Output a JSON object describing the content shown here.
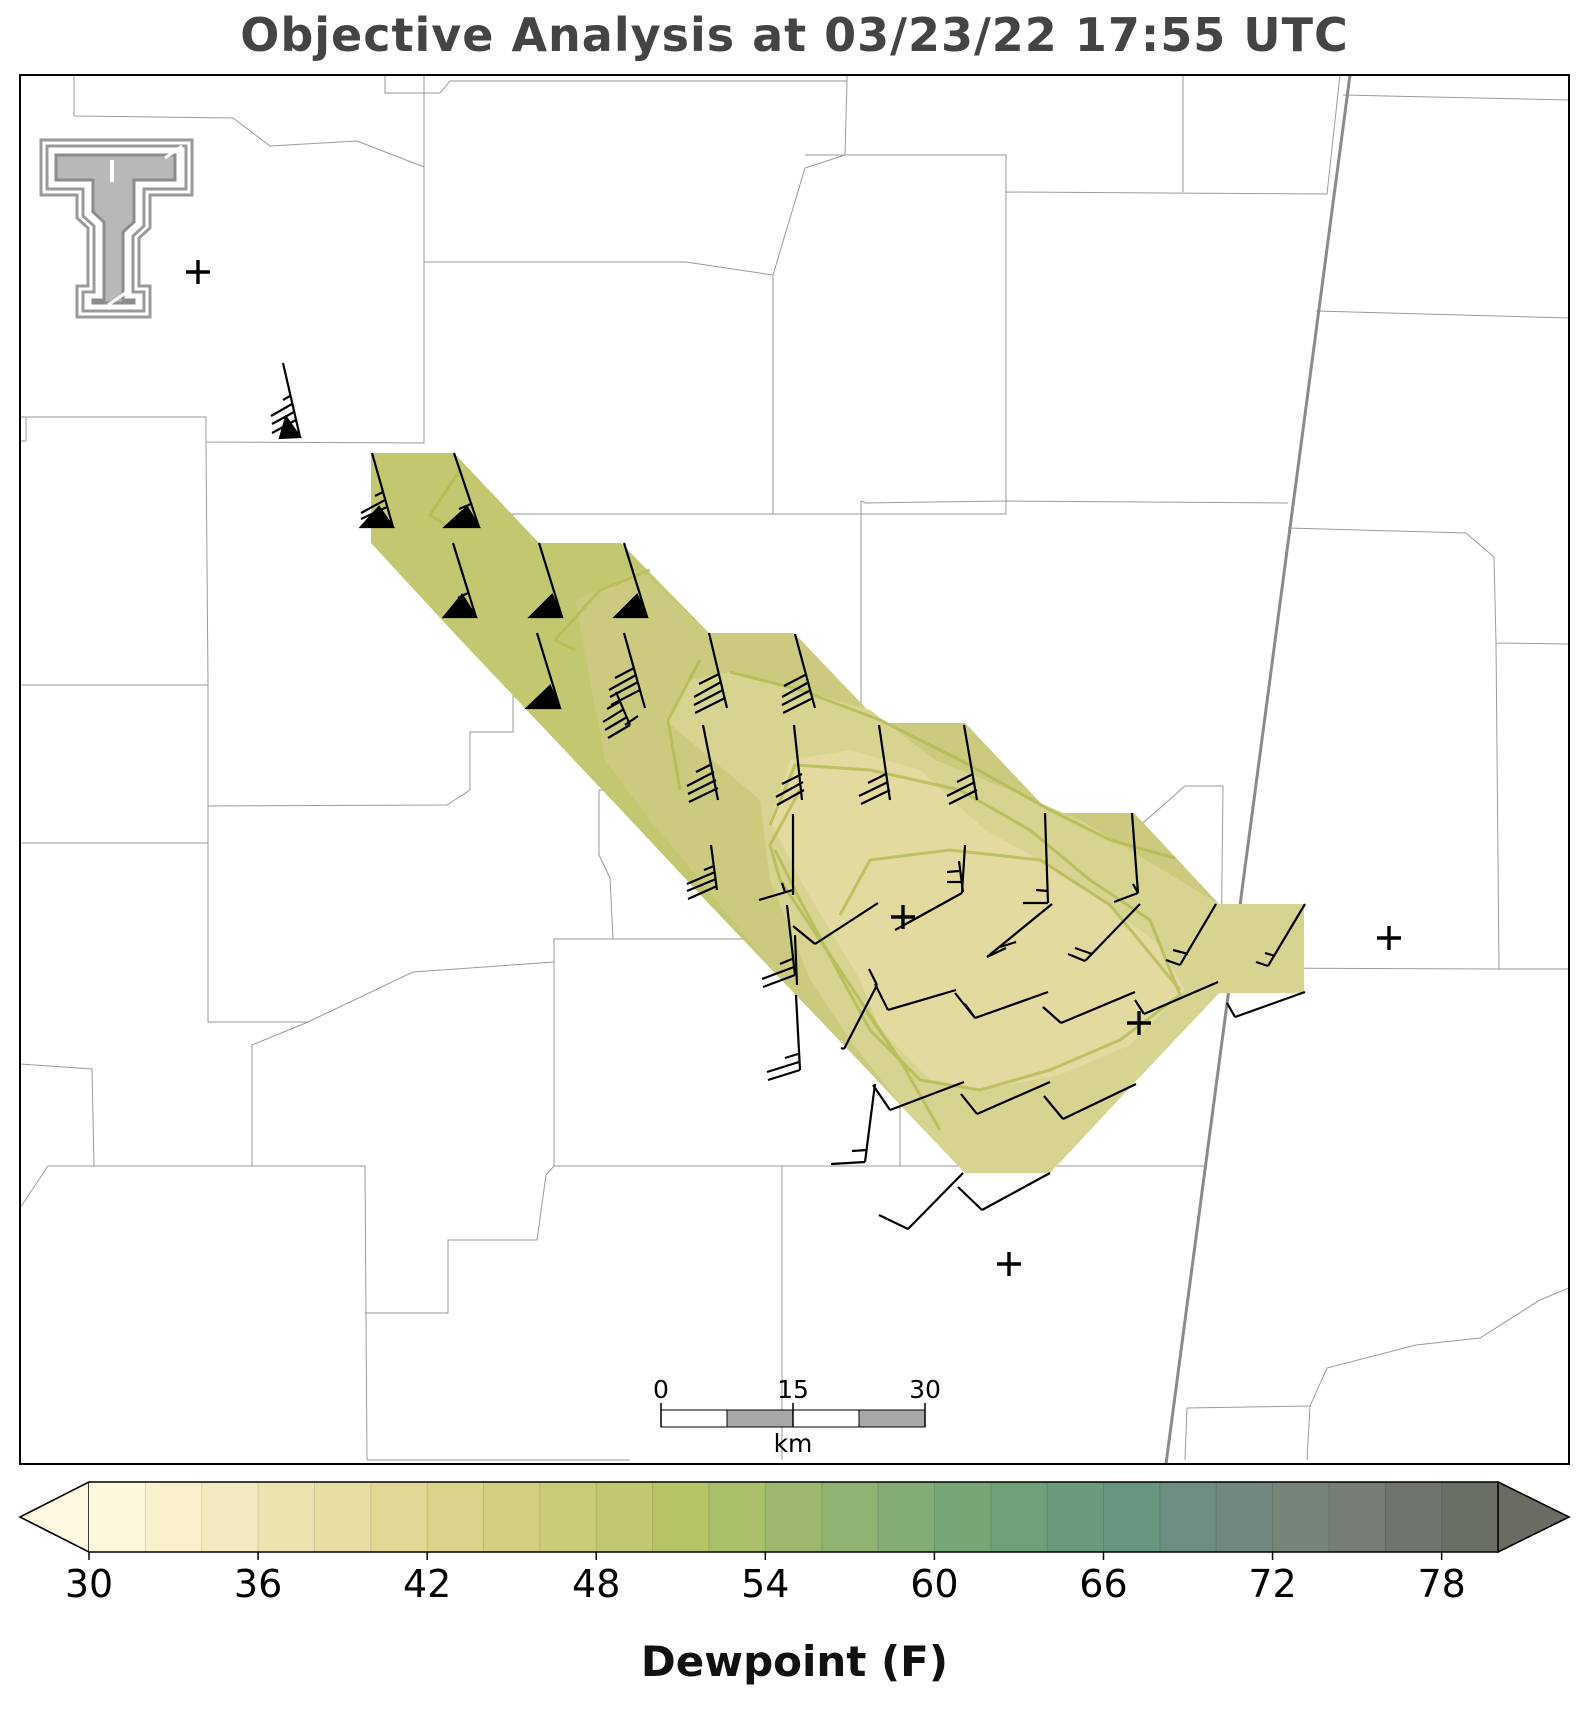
{
  "title": "Objective Analysis at 03/23/22 17:55 UTC",
  "colorbar": {
    "label": "Dewpoint (F)",
    "min": 30,
    "max": 80,
    "step": 2,
    "tick_labels": [
      "30",
      "36",
      "42",
      "48",
      "54",
      "60",
      "66",
      "72",
      "78"
    ],
    "extend": "both",
    "colors": [
      "#fdf8dc",
      "#f8f1cc",
      "#f3eabf",
      "#ede3b0",
      "#e8dea3",
      "#e2d795",
      "#dbd38a",
      "#d3cf80",
      "#cbcc77",
      "#c1c86f",
      "#b6c466",
      "#a9bf68",
      "#9cb86d",
      "#8fb171",
      "#83ab74",
      "#76a676",
      "#6da079",
      "#689a7c",
      "#669580",
      "#6d8d80",
      "#72877d",
      "#77847a",
      "#767d75",
      "#6f746c",
      "#6a6f66"
    ],
    "under_color": "#fef9e0",
    "over_color": "#686c61"
  },
  "scale_bar": {
    "labels": [
      "0",
      "15",
      "30"
    ],
    "unit": "km"
  },
  "logo": {
    "text": "TT",
    "name": "texas-tech-double-t-logo"
  },
  "station_markers": 6,
  "dewpoint_region": {
    "fill_colors": [
      "#b9c56a",
      "#c9cb7c",
      "#d6d18c",
      "#e3db9e"
    ]
  },
  "wind_barbs": 48
}
